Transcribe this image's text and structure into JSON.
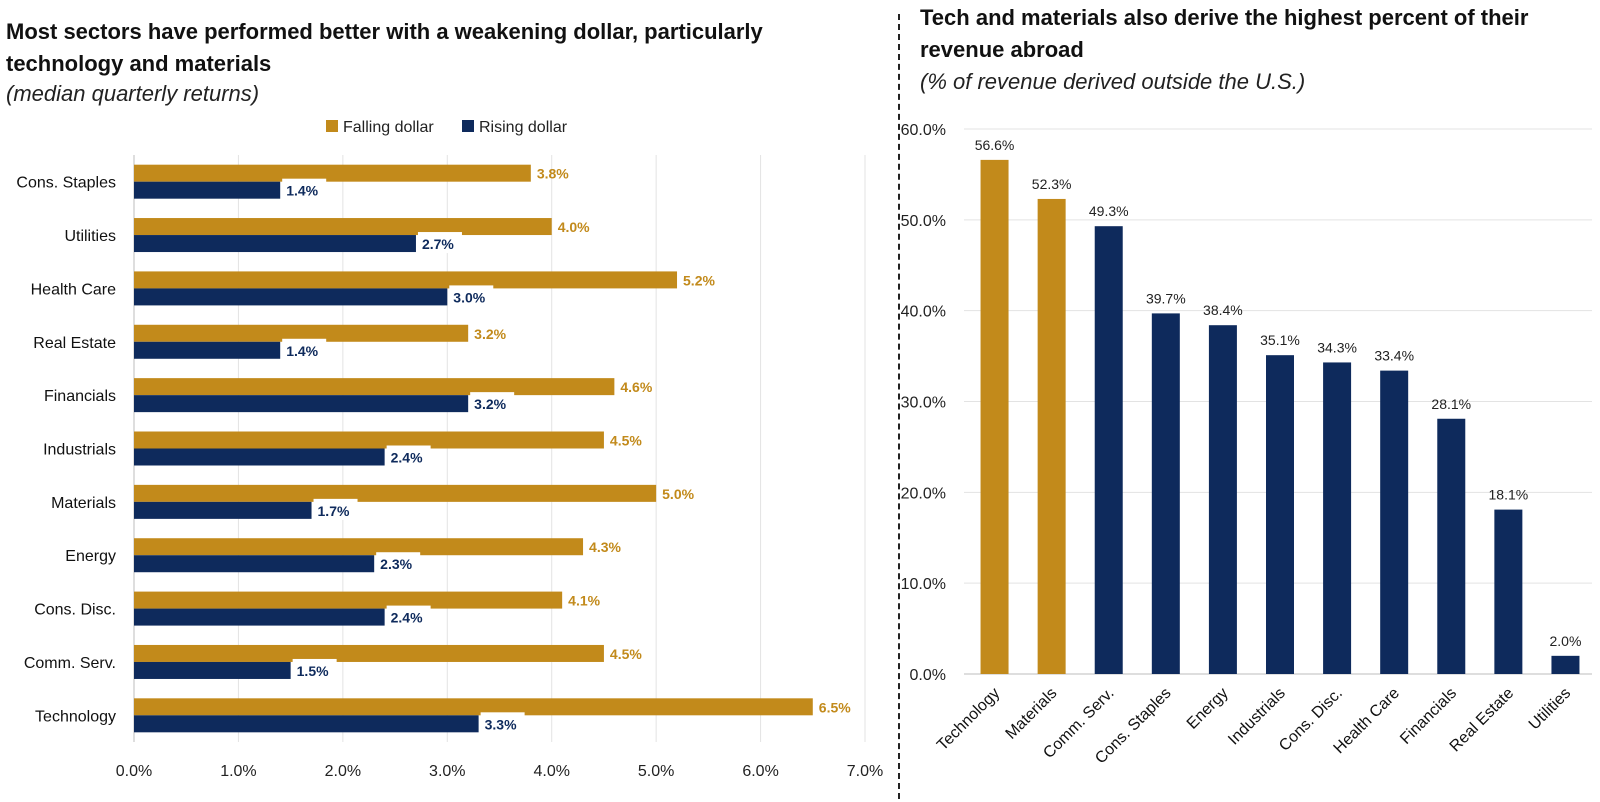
{
  "left": {
    "title": "Most sectors have performed better with a weakening dollar, particularly technology and materials",
    "subtitle": "(median quarterly returns)"
  },
  "right": {
    "title": "Tech and materials also derive the highest percent of their revenue abroad",
    "subtitle": "(% of revenue derived outside the U.S.)"
  },
  "colors": {
    "gold": "#c28a1b",
    "navy": "#0e2a5c"
  },
  "chart_data": [
    {
      "type": "bar",
      "orientation": "horizontal",
      "title": "Most sectors have performed better with a weakening dollar, particularly technology and materials",
      "subtitle": "(median quarterly returns)",
      "categories": [
        "Cons. Staples",
        "Utilities",
        "Health Care",
        "Real Estate",
        "Financials",
        "Industrials",
        "Materials",
        "Energy",
        "Cons. Disc.",
        "Comm. Serv.",
        "Technology"
      ],
      "series": [
        {
          "name": "Falling dollar",
          "color": "#c28a1b",
          "values": [
            3.8,
            4.0,
            5.2,
            3.2,
            4.6,
            4.5,
            5.0,
            4.3,
            4.1,
            4.5,
            6.5
          ]
        },
        {
          "name": "Rising dollar",
          "color": "#0e2a5c",
          "values": [
            1.4,
            2.7,
            3.0,
            1.4,
            3.2,
            2.4,
            1.7,
            2.3,
            2.4,
            1.5,
            3.3
          ]
        }
      ],
      "xlim": [
        0,
        7
      ],
      "xticks": [
        "0.0%",
        "1.0%",
        "2.0%",
        "3.0%",
        "4.0%",
        "5.0%",
        "6.0%",
        "7.0%"
      ],
      "grid": true,
      "legend": "top-center"
    },
    {
      "type": "bar",
      "orientation": "vertical",
      "title": "Tech and materials also derive the highest percent of their revenue abroad",
      "subtitle": "(% of revenue derived outside the U.S.)",
      "categories": [
        "Technology",
        "Materials",
        "Comm. Serv.",
        "Cons. Staples",
        "Energy",
        "Industrials",
        "Cons. Disc.",
        "Health Care",
        "Financials",
        "Real Estate",
        "Utilities"
      ],
      "values": [
        56.6,
        52.3,
        49.3,
        39.7,
        38.4,
        35.1,
        34.3,
        33.4,
        28.1,
        18.1,
        2.0
      ],
      "bar_colors": [
        "#c28a1b",
        "#c28a1b",
        "#0e2a5c",
        "#0e2a5c",
        "#0e2a5c",
        "#0e2a5c",
        "#0e2a5c",
        "#0e2a5c",
        "#0e2a5c",
        "#0e2a5c",
        "#0e2a5c"
      ],
      "ylim": [
        0,
        60
      ],
      "yticks": [
        "0.0%",
        "10.0%",
        "20.0%",
        "30.0%",
        "40.0%",
        "50.0%",
        "60.0%"
      ],
      "grid": true
    }
  ]
}
